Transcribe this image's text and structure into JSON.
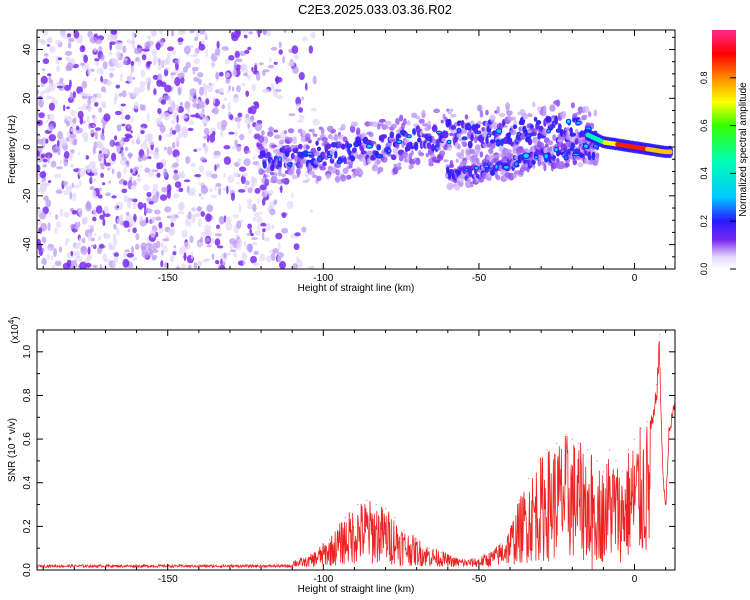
{
  "title": "C2E3.2025.033.03.36.R02",
  "colors": {
    "spectrogram_purple": "#7a2cf0",
    "line_red": "#ee2222"
  },
  "chart_data": [
    {
      "type": "heatmap",
      "xlabel": "Height of straight line (km)",
      "ylabel": "Frequency (Hz)",
      "xlim": [
        -192,
        13
      ],
      "ylim": [
        -50,
        48
      ],
      "x_ticks": [
        -150,
        -100,
        -50,
        0
      ],
      "y_ticks": [
        -40,
        -20,
        0,
        20,
        40
      ],
      "colorbar": {
        "label": "Normalized spectral amplitude",
        "range": [
          0,
          1
        ],
        "ticks": [
          "0.0",
          "0.2",
          "0.4",
          "0.6",
          "0.8"
        ],
        "colormap": "rainbow (white-purple-blue-cyan-green-yellow-red-magenta)"
      },
      "features": [
        {
          "name": "broadband noise",
          "x_range": [
            -192,
            -110
          ],
          "freq_range": [
            -50,
            48
          ],
          "amplitude": 0.05
        },
        {
          "name": "upper branch",
          "points": [
            [
              -120,
              -5
            ],
            [
              -100,
              -3
            ],
            [
              -80,
              0
            ],
            [
              -60,
              5
            ],
            [
              -40,
              6
            ],
            [
              -20,
              8
            ],
            [
              -10,
              2
            ],
            [
              0,
              0
            ],
            [
              10,
              -2
            ]
          ],
          "amplitude_max": 1.0
        },
        {
          "name": "lower branch",
          "points": [
            [
              -60,
              -12
            ],
            [
              -50,
              -10
            ],
            [
              -40,
              -7
            ],
            [
              -30,
              -4
            ],
            [
              -20,
              -2
            ],
            [
              -10,
              -1
            ]
          ],
          "amplitude_max": 0.5
        }
      ]
    },
    {
      "type": "line",
      "xlabel": "Height of straight line (km)",
      "ylabel": "SNR (10 * v/v)",
      "y_multiplier": "(x10^4)",
      "xlim": [
        -192,
        13
      ],
      "ylim": [
        0,
        1.1
      ],
      "x_ticks": [
        -150,
        -100,
        -50,
        0
      ],
      "y_ticks": [
        0.0,
        0.2,
        0.4,
        0.6,
        0.8,
        1.0
      ],
      "series": [
        {
          "x": [
            -192,
            -170,
            -150,
            -130,
            -115,
            -105,
            -98,
            -93,
            -89,
            -86,
            -83,
            -80,
            -77,
            -74,
            -70,
            -66,
            -62,
            -58,
            -54,
            -50,
            -46,
            -43,
            -40,
            -37,
            -34,
            -31,
            -28,
            -25,
            -22,
            -20,
            -18,
            -15,
            -12,
            -10,
            -8,
            -6,
            -4,
            -2,
            0,
            2,
            4,
            6,
            7,
            8,
            9,
            10,
            11,
            13
          ],
          "values": [
            0.02,
            0.02,
            0.02,
            0.02,
            0.03,
            0.05,
            0.14,
            0.24,
            0.3,
            0.32,
            0.3,
            0.28,
            0.24,
            0.18,
            0.14,
            0.1,
            0.08,
            0.05,
            0.04,
            0.05,
            0.08,
            0.12,
            0.2,
            0.32,
            0.42,
            0.5,
            0.55,
            0.58,
            0.62,
            0.6,
            0.58,
            0.55,
            0.5,
            0.45,
            0.55,
            0.5,
            0.45,
            0.55,
            0.6,
            0.65,
            0.68,
            0.72,
            0.85,
            1.08,
            0.5,
            0.3,
            0.65,
            0.82
          ]
        }
      ]
    }
  ]
}
